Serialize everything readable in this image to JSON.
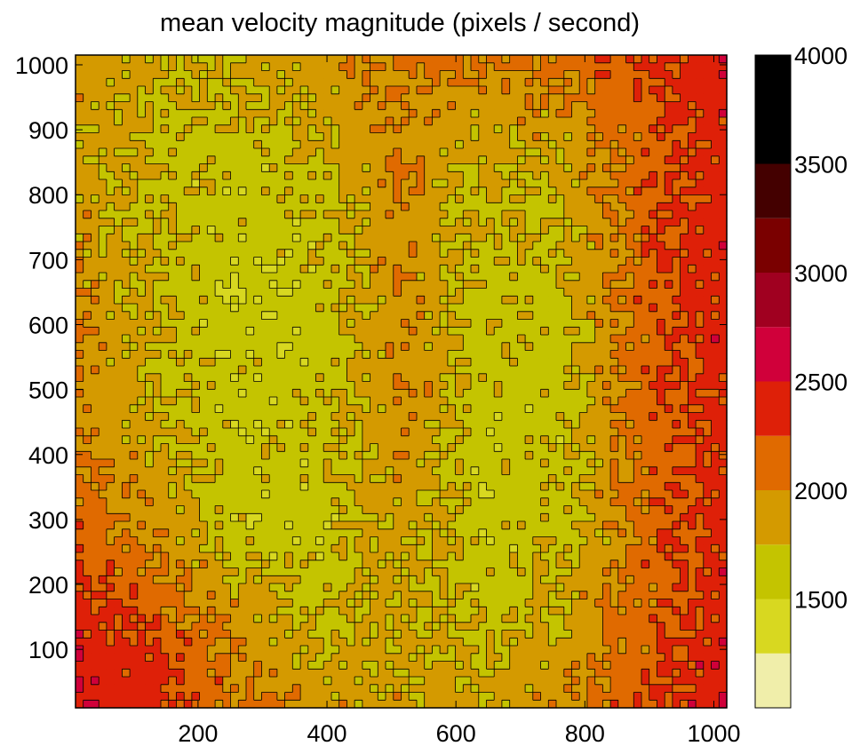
{
  "chart_data": {
    "type": "heatmap",
    "title": "mean velocity magnitude  (pixels / second)",
    "xlabel": "",
    "ylabel": "",
    "xlim": [
      10,
      1020
    ],
    "ylim": [
      10,
      1015
    ],
    "x_ticks": [
      {
        "value": 200,
        "label": "200"
      },
      {
        "value": 400,
        "label": "400"
      },
      {
        "value": 600,
        "label": "600"
      },
      {
        "value": 800,
        "label": "800"
      },
      {
        "value": 1000,
        "label": "1000"
      }
    ],
    "y_ticks": [
      {
        "value": 100,
        "label": "100"
      },
      {
        "value": 200,
        "label": "200"
      },
      {
        "value": 300,
        "label": "300"
      },
      {
        "value": 400,
        "label": "400"
      },
      {
        "value": 500,
        "label": "500"
      },
      {
        "value": 600,
        "label": "600"
      },
      {
        "value": 700,
        "label": "700"
      },
      {
        "value": 800,
        "label": "800"
      },
      {
        "value": 900,
        "label": "900"
      },
      {
        "value": 1000,
        "label": "1000"
      }
    ],
    "grid": false,
    "contour_lines": true,
    "colorbar": {
      "position": "right",
      "range": [
        1000,
        4000
      ],
      "levels": [
        {
          "from": 1000,
          "to": 1250,
          "color": "#f0eeaa"
        },
        {
          "from": 1250,
          "to": 1500,
          "color": "#d8d820"
        },
        {
          "from": 1500,
          "to": 1750,
          "color": "#c4c400"
        },
        {
          "from": 1750,
          "to": 2000,
          "color": "#d49a00"
        },
        {
          "from": 2000,
          "to": 2250,
          "color": "#e06a00"
        },
        {
          "from": 2250,
          "to": 2500,
          "color": "#de2008"
        },
        {
          "from": 2500,
          "to": 2750,
          "color": "#d0003a"
        },
        {
          "from": 2750,
          "to": 3000,
          "color": "#a00020"
        },
        {
          "from": 3000,
          "to": 3250,
          "color": "#7a0000"
        },
        {
          "from": 3250,
          "to": 3500,
          "color": "#440000"
        },
        {
          "from": 3500,
          "to": 4000,
          "color": "#000000"
        }
      ],
      "ticks": [
        {
          "value": 1500,
          "label": "1500"
        },
        {
          "value": 2000,
          "label": "2000"
        },
        {
          "value": 2500,
          "label": "2500"
        },
        {
          "value": 3000,
          "label": "3000"
        },
        {
          "value": 3500,
          "label": "3500"
        },
        {
          "value": 4000,
          "label": "4000"
        }
      ]
    },
    "field_description_values": {
      "grid_x": [
        10,
        136,
        262,
        388,
        514,
        640,
        767,
        893,
        1020
      ],
      "grid_y": [
        10,
        136,
        261,
        387,
        512,
        638,
        764,
        889,
        1015
      ],
      "values": [
        [
          2450,
          2350,
          2050,
          1900,
          1850,
          1850,
          1950,
          2200,
          2450
        ],
        [
          2400,
          2200,
          1900,
          1700,
          1800,
          1700,
          1800,
          2150,
          2400
        ],
        [
          2200,
          1950,
          1650,
          1600,
          1850,
          1600,
          1700,
          2100,
          2350
        ],
        [
          2050,
          1800,
          1600,
          1650,
          1900,
          1600,
          1650,
          2100,
          2350
        ],
        [
          1950,
          1750,
          1600,
          1650,
          1950,
          1650,
          1650,
          2150,
          2350
        ],
        [
          1950,
          1750,
          1550,
          1600,
          1950,
          1650,
          1700,
          2150,
          2400
        ],
        [
          1900,
          1700,
          1600,
          1650,
          1950,
          1700,
          1750,
          2150,
          2400
        ],
        [
          1850,
          1700,
          1650,
          1800,
          1950,
          1800,
          1850,
          2150,
          2400
        ],
        [
          1900,
          1800,
          1800,
          1900,
          2050,
          2000,
          2100,
          2300,
          2450
        ]
      ]
    }
  }
}
